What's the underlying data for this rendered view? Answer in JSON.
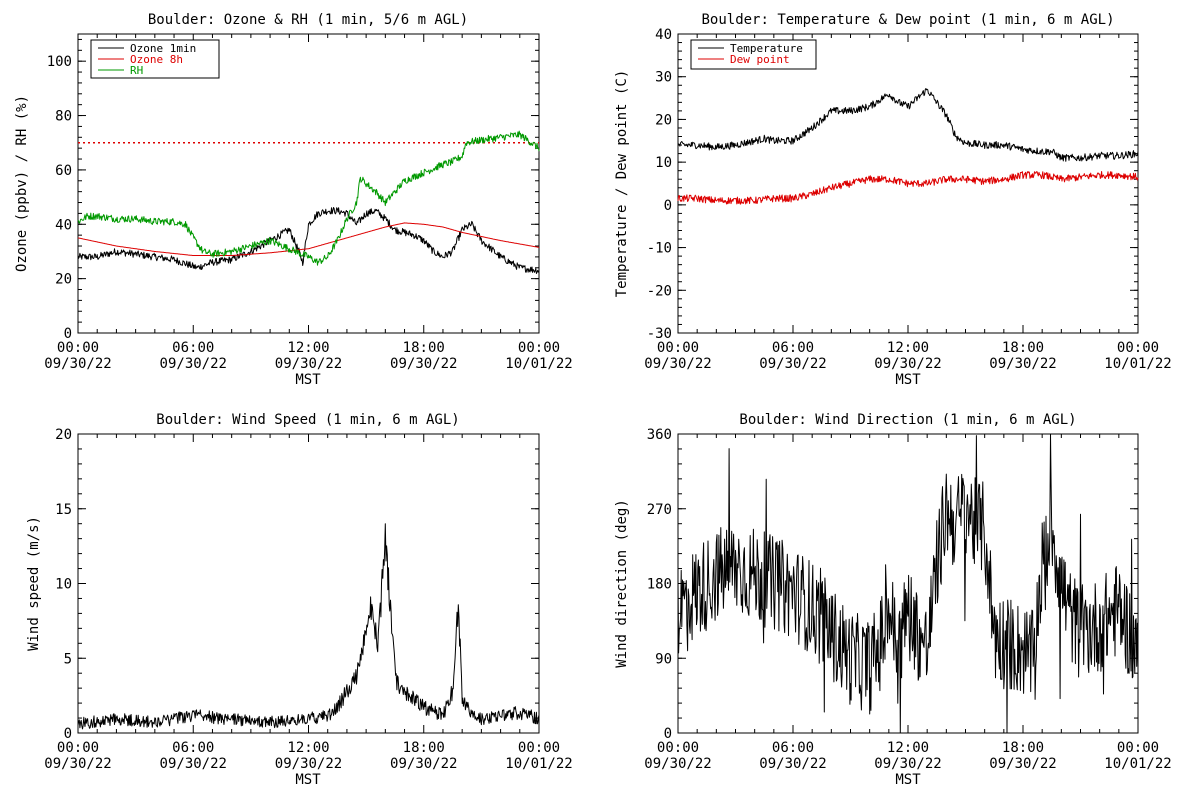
{
  "chart_data": [
    {
      "type": "line",
      "title": "Boulder: Ozone & RH (1 min, 5/6 m AGL)",
      "xlabel": "MST",
      "ylabel": "Ozone (ppbv) / RH (%)",
      "xlim": [
        0,
        24
      ],
      "ylim": [
        0,
        110
      ],
      "yticks": [
        0,
        20,
        40,
        60,
        80,
        100
      ],
      "xtick_times": [
        "00:00",
        "06:00",
        "12:00",
        "18:00",
        "00:00"
      ],
      "xtick_dates": [
        "09/30/22",
        "09/30/22",
        "09/30/22",
        "09/30/22",
        "10/01/22"
      ],
      "legend": {
        "location": "top-left",
        "entries": [
          "Ozone 1min",
          "Ozone 8h",
          "RH"
        ]
      },
      "reference_lines": [
        {
          "y": 70,
          "color": "#dd0000",
          "style": "dotted"
        }
      ],
      "series": [
        {
          "name": "Ozone 1min",
          "color": "#000000",
          "noisy": true,
          "x": [
            0,
            1,
            2,
            3,
            4,
            5,
            5.8,
            6.2,
            7,
            8,
            9,
            10,
            11,
            11.5,
            11.7,
            12,
            12.5,
            13,
            13.5,
            14,
            14.5,
            15,
            15.5,
            16,
            16.5,
            17,
            17.5,
            18,
            18.5,
            19,
            19.5,
            20,
            20.5,
            21,
            22,
            23,
            24
          ],
          "y": [
            28,
            28,
            30,
            29,
            28,
            27,
            25,
            24,
            26,
            27,
            30,
            34,
            38,
            30,
            26,
            40,
            44,
            45,
            45,
            44,
            40,
            44,
            45,
            42,
            38,
            37,
            36,
            34,
            30,
            28,
            30,
            38,
            40,
            34,
            28,
            24,
            23
          ]
        },
        {
          "name": "Ozone 8h",
          "color": "#dd0000",
          "noisy": false,
          "x": [
            0,
            2,
            4,
            6,
            8,
            10,
            12,
            14,
            16,
            17,
            18,
            19,
            20,
            22,
            24
          ],
          "y": [
            35,
            32,
            30,
            28.5,
            28.5,
            29.5,
            31,
            35,
            39,
            40.5,
            40,
            39,
            37,
            34,
            31.5
          ]
        },
        {
          "name": "RH",
          "color": "#009900",
          "noisy": true,
          "x": [
            0,
            0.5,
            1,
            2,
            3,
            4,
            5,
            5.6,
            6,
            6.5,
            7,
            8,
            9,
            10,
            11,
            12,
            12.5,
            13,
            13.5,
            14,
            14.5,
            14.7,
            15,
            15.5,
            16,
            16.5,
            17,
            18,
            19,
            19.5,
            20,
            20.2,
            21,
            22,
            23,
            24
          ],
          "y": [
            41,
            43,
            43,
            42,
            42,
            41,
            41,
            40,
            35,
            30,
            29,
            30,
            32,
            34,
            31,
            28,
            26,
            28,
            34,
            42,
            48,
            57,
            55,
            52,
            48,
            52,
            56,
            59,
            62,
            63,
            65,
            70,
            71,
            72,
            73,
            68
          ]
        }
      ]
    },
    {
      "type": "line",
      "title": "Boulder: Temperature & Dew point (1 min, 6 m AGL)",
      "xlabel": "MST",
      "ylabel": "Temperature / Dew point (C)",
      "xlim": [
        0,
        24
      ],
      "ylim": [
        -30,
        40
      ],
      "yticks": [
        -30,
        -20,
        -10,
        0,
        10,
        20,
        30,
        40
      ],
      "xtick_times": [
        "00:00",
        "06:00",
        "12:00",
        "18:00",
        "00:00"
      ],
      "xtick_dates": [
        "09/30/22",
        "09/30/22",
        "09/30/22",
        "09/30/22",
        "10/01/22"
      ],
      "legend": {
        "location": "top-left",
        "entries": [
          "Temperature",
          "Dew point"
        ]
      },
      "series": [
        {
          "name": "Temperature",
          "color": "#000000",
          "noisy": true,
          "x": [
            0,
            1,
            2,
            3,
            4,
            4.5,
            5,
            6,
            7,
            8,
            9,
            10,
            11,
            11.5,
            12,
            12.5,
            13,
            13.5,
            14,
            14.5,
            15,
            16,
            17,
            18,
            19,
            19.5,
            20,
            21,
            22,
            23,
            24
          ],
          "y": [
            14,
            14,
            13.5,
            14,
            15,
            15.5,
            15,
            15,
            18,
            22,
            22,
            23,
            26,
            24,
            23,
            25,
            27,
            24,
            21,
            16,
            14.5,
            14,
            14,
            13,
            12.5,
            12.5,
            11,
            11,
            11.5,
            11.5,
            12
          ]
        },
        {
          "name": "Dew point",
          "color": "#dd0000",
          "noisy": true,
          "x": [
            0,
            1,
            2,
            3,
            4,
            5,
            6,
            7,
            8,
            9,
            10,
            11,
            12,
            13,
            14,
            15,
            16,
            17,
            18,
            19,
            20,
            21,
            22,
            23,
            24
          ],
          "y": [
            1.5,
            1.5,
            1,
            1,
            1,
            1.5,
            1.5,
            2.5,
            4,
            5,
            6,
            6,
            5,
            5,
            6,
            6,
            5.5,
            6,
            7,
            7,
            6,
            6.5,
            7,
            7,
            6.5
          ]
        }
      ]
    },
    {
      "type": "line",
      "title": "Boulder: Wind Speed (1 min, 6 m AGL)",
      "xlabel": "MST",
      "ylabel": "Wind speed (m/s)",
      "xlim": [
        0,
        24
      ],
      "ylim": [
        0,
        20
      ],
      "yticks": [
        0,
        5,
        10,
        15,
        20
      ],
      "xtick_times": [
        "00:00",
        "06:00",
        "12:00",
        "18:00",
        "00:00"
      ],
      "xtick_dates": [
        "09/30/22",
        "09/30/22",
        "09/30/22",
        "09/30/22",
        "10/01/22"
      ],
      "series": [
        {
          "name": "",
          "color": "#000000",
          "noisy": true,
          "x": [
            0,
            2,
            4,
            6,
            8,
            10,
            12,
            13,
            13.5,
            14,
            14.5,
            15,
            15.3,
            15.6,
            16,
            16.3,
            16.6,
            17,
            18,
            19,
            19.5,
            19.8,
            20,
            20.5,
            21,
            22,
            23,
            24
          ],
          "y": [
            0.5,
            0.8,
            0.6,
            1.0,
            0.8,
            0.6,
            0.8,
            1.0,
            1.5,
            2.5,
            3.5,
            6,
            8,
            5,
            12,
            7,
            3,
            2.5,
            1.5,
            1.0,
            2.5,
            8,
            2,
            1.0,
            0.8,
            1.0,
            1.2,
            0.8
          ]
        }
      ]
    },
    {
      "type": "line",
      "title": "Boulder: Wind Direction (1 min, 6 m AGL)",
      "xlabel": "MST",
      "ylabel": "Wind direction (deg)",
      "xlim": [
        0,
        24
      ],
      "ylim": [
        0,
        360
      ],
      "yticks": [
        0,
        90,
        180,
        270,
        360
      ],
      "xtick_times": [
        "00:00",
        "06:00",
        "12:00",
        "18:00",
        "00:00"
      ],
      "xtick_dates": [
        "09/30/22",
        "09/30/22",
        "09/30/22",
        "09/30/22",
        "10/01/22"
      ],
      "series": [
        {
          "name": "",
          "color": "#000000",
          "noisy": true,
          "x": [
            0,
            1,
            2,
            3,
            4,
            5,
            6,
            7,
            8,
            9,
            10,
            10.5,
            11,
            11.5,
            12,
            12.5,
            13,
            13.5,
            14,
            14.5,
            15,
            15.5,
            16,
            16.5,
            17,
            18,
            18.5,
            19,
            19.5,
            20,
            20.5,
            21,
            22,
            23,
            24
          ],
          "y": [
            150,
            170,
            190,
            200,
            190,
            180,
            170,
            150,
            120,
            90,
            80,
            100,
            150,
            100,
            150,
            120,
            100,
            200,
            270,
            250,
            275,
            250,
            245,
            120,
            110,
            100,
            90,
            200,
            250,
            180,
            140,
            120,
            130,
            150,
            100
          ]
        }
      ]
    }
  ]
}
